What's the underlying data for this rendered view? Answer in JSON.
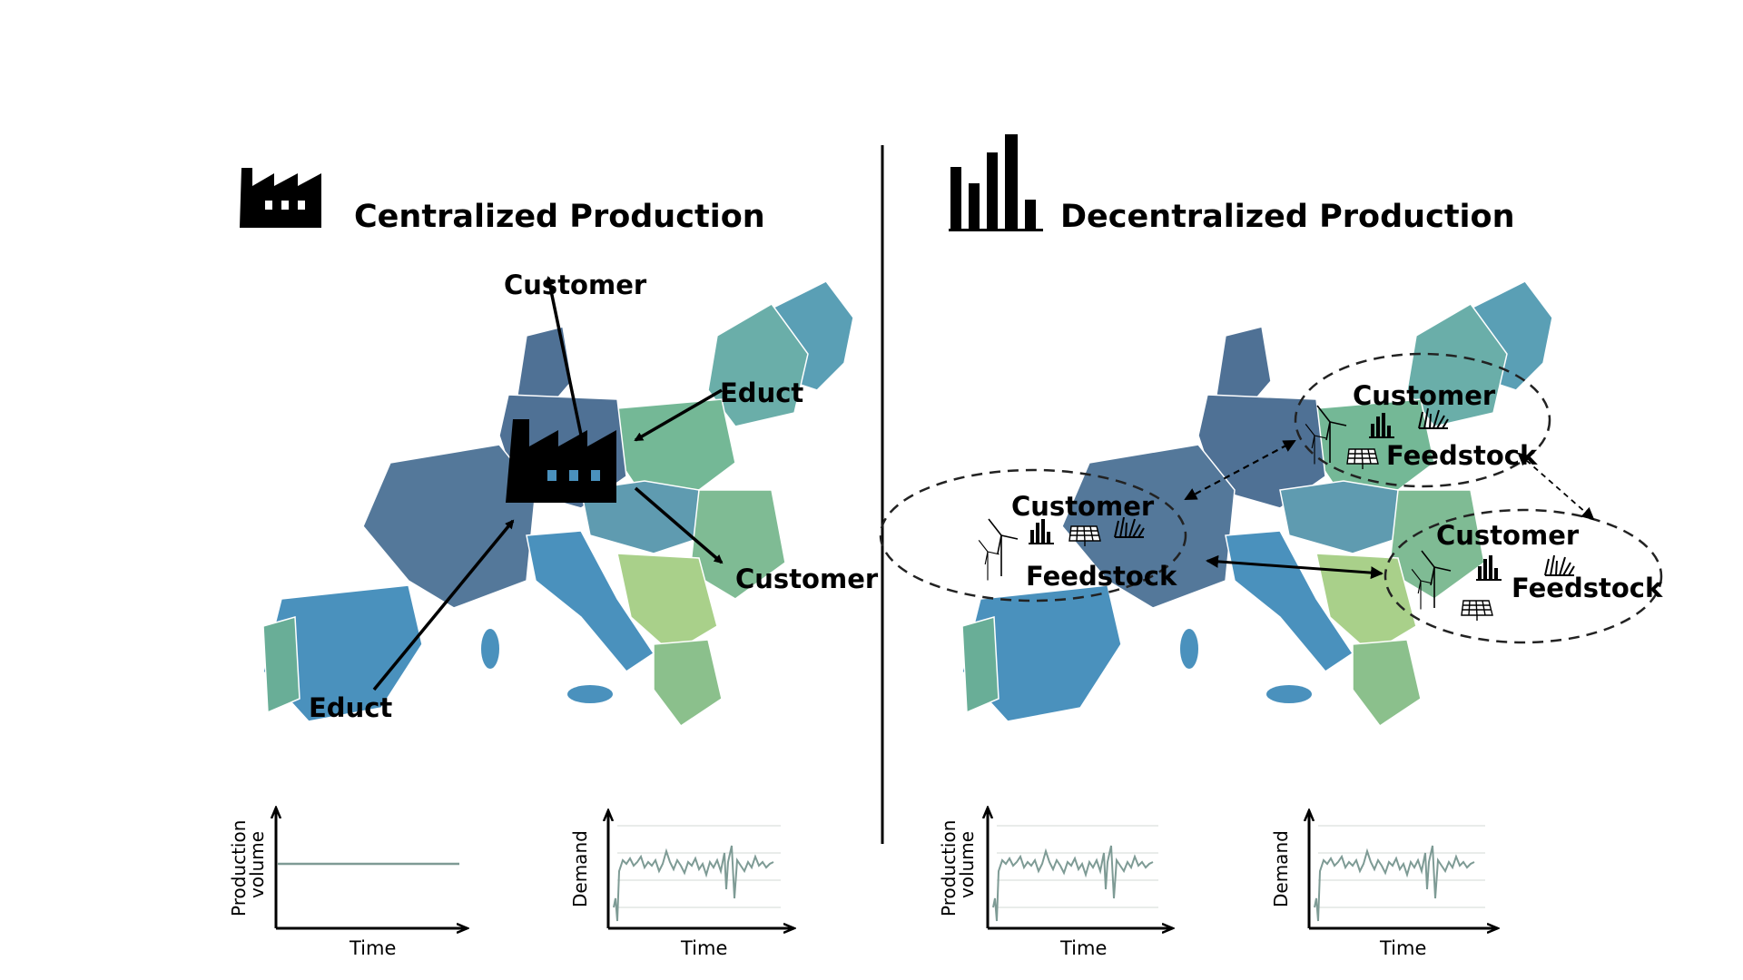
{
  "left": {
    "title": "Centralized Production",
    "labels": {
      "customer_top": "Customer",
      "educt_right": "Educt",
      "customer_right": "Customer",
      "educt_left": "Educt"
    },
    "chart_production": {
      "ylabel_line1": "Production",
      "ylabel_line2": "volume",
      "xlabel": "Time"
    },
    "chart_demand": {
      "ylabel": "Demand",
      "xlabel": "Time"
    }
  },
  "right": {
    "title": "Decentralized Production",
    "clusters": [
      {
        "customer": "Customer",
        "feedstock": "Feedstock"
      },
      {
        "customer": "Customer",
        "feedstock": "Feedstock"
      },
      {
        "customer": "Customer",
        "feedstock": "Feedstock"
      }
    ],
    "chart_production": {
      "ylabel_line1": "Production",
      "ylabel_line2": "volume",
      "xlabel": "Time"
    },
    "chart_demand": {
      "ylabel": "Demand",
      "xlabel": "Time"
    }
  },
  "colors": {
    "west": "#54789a",
    "central": "#4f7195",
    "south": "#4a91bd",
    "north": "#5a9fb5",
    "east": "#74b896",
    "southeast": "#a9d08a",
    "baltic": "#6aaea9"
  }
}
